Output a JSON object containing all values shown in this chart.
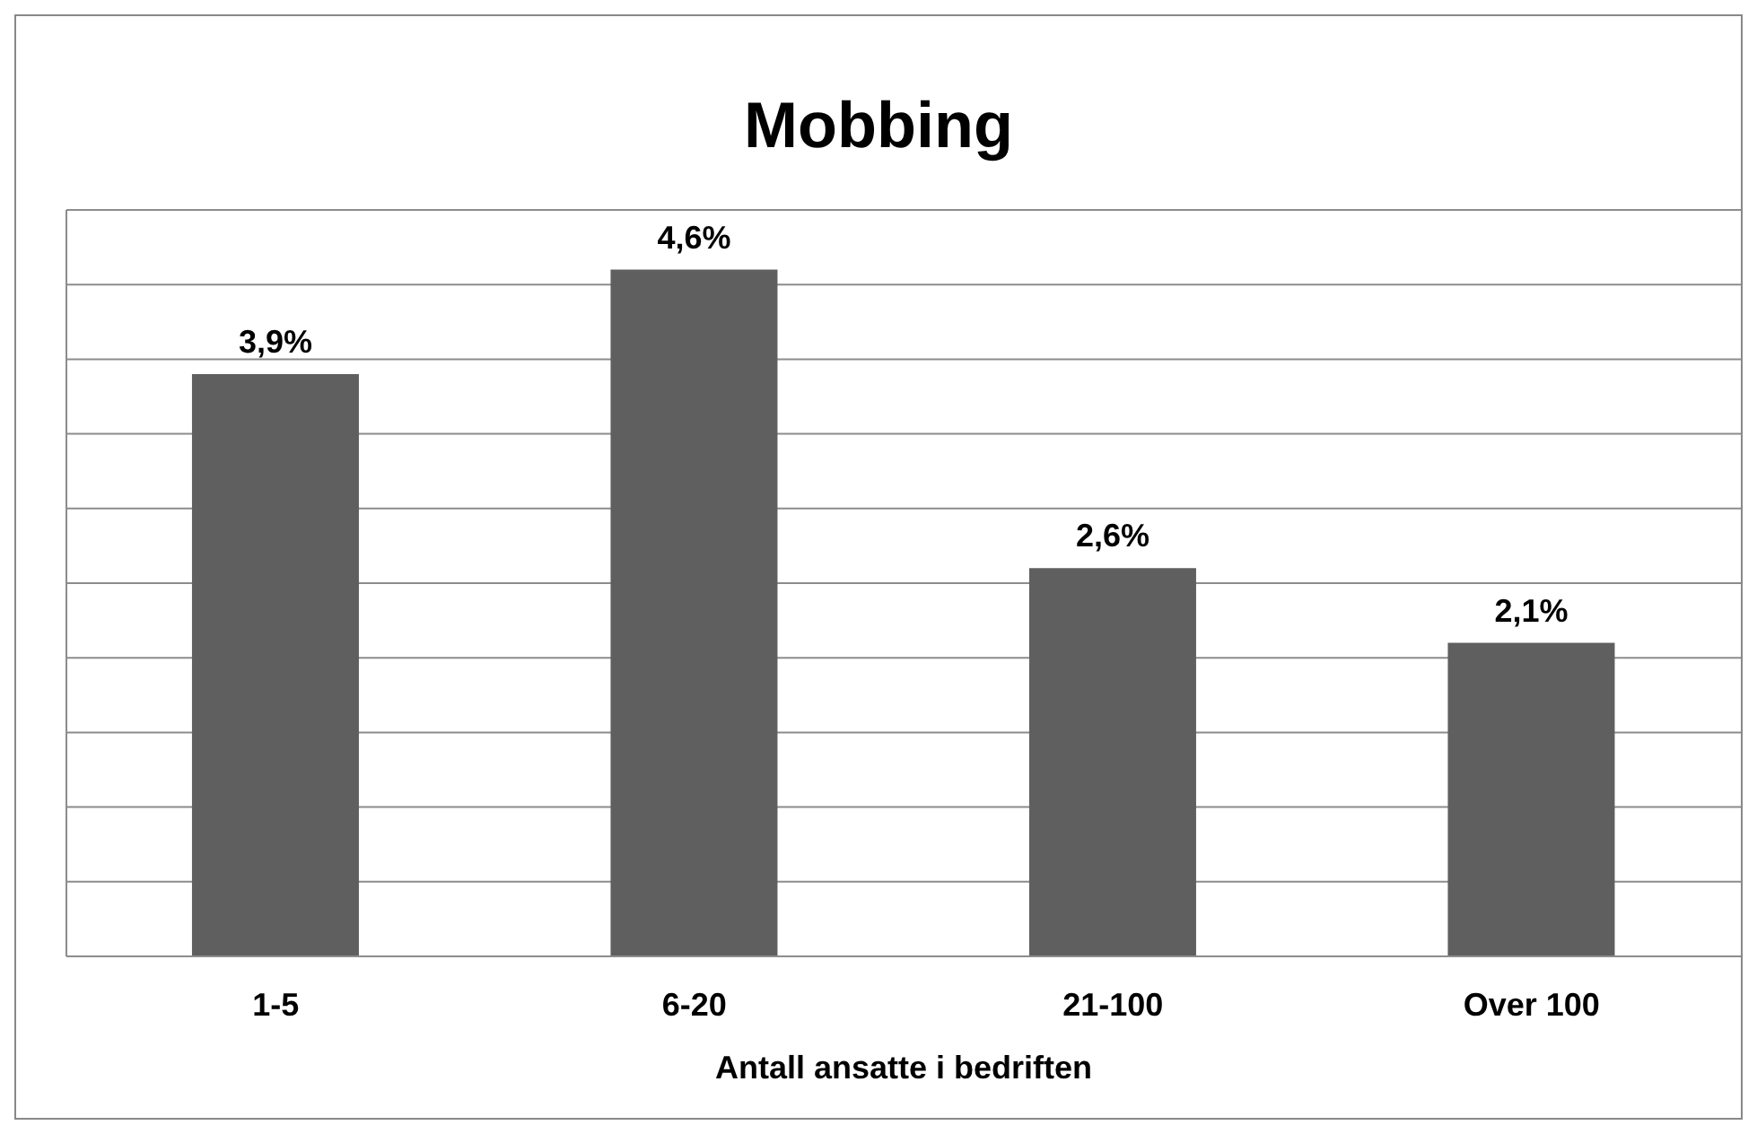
{
  "chart_data": {
    "type": "bar",
    "title": "Mobbing",
    "xlabel": "Antall ansatte i bedriften",
    "categories": [
      "1-5",
      "6-20",
      "21-100",
      "Over 100"
    ],
    "values": [
      3.9,
      4.6,
      2.6,
      2.1
    ],
    "value_labels": [
      "3,9%",
      "4,6%",
      "2,6%",
      "2,1%"
    ],
    "color": "#5f5f5f",
    "ylim": [
      0,
      5
    ],
    "yticks": [
      {
        "value": 0,
        "label": null
      },
      {
        "value": 0.5,
        "label": null
      },
      {
        "value": 1,
        "label": null
      },
      {
        "value": 1.5,
        "label": null
      },
      {
        "value": 2,
        "label": null
      },
      {
        "value": 2.5,
        "label": null
      },
      {
        "value": 3,
        "label": null
      },
      {
        "value": 3.5,
        "label": null
      },
      {
        "value": 4,
        "label": null
      },
      {
        "value": 4.5,
        "label": null
      },
      {
        "value": 5,
        "label": null
      }
    ],
    "tick_labels": "x",
    "grid": "y",
    "legend": false
  }
}
